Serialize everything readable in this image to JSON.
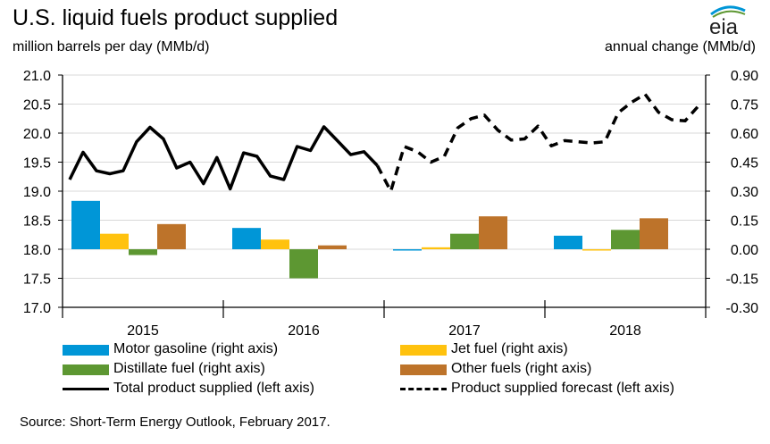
{
  "title": "U.S. liquid fuels product supplied",
  "left_unit": "million barrels per day (MMb/d)",
  "right_unit": "annual change (MMb/d)",
  "logo_text": "eia",
  "source": "Source: Short-Term Energy Outlook, February 2017.",
  "colors": {
    "motor_gasoline": "#0096d7",
    "jet_fuel": "#ffc20e",
    "distillate_fuel": "#5d9732",
    "other_fuels": "#bd732a",
    "line": "#000000"
  },
  "legend": [
    {
      "key": "motor_gasoline",
      "label": "Motor gasoline (right axis)"
    },
    {
      "key": "jet_fuel",
      "label": "Jet fuel (right axis)"
    },
    {
      "key": "distillate_fuel",
      "label": "Distillate fuel (right axis)"
    },
    {
      "key": "other_fuels",
      "label": "Other fuels (right axis)"
    },
    {
      "key": "total",
      "label": "Total product supplied (left axis)"
    },
    {
      "key": "forecast",
      "label": "Product supplied forecast (left axis)"
    }
  ],
  "chart_data": {
    "type": "bar+line",
    "categories": [
      "2015",
      "2016",
      "2017",
      "2018"
    ],
    "left_axis": {
      "range": [
        17.0,
        21.0
      ],
      "ticks": [
        "17.0",
        "17.5",
        "18.0",
        "18.5",
        "19.0",
        "19.5",
        "20.0",
        "20.5",
        "21.0"
      ]
    },
    "right_axis": {
      "range": [
        -0.3,
        0.9
      ],
      "ticks": [
        "-0.30",
        "-0.15",
        "0.00",
        "0.15",
        "0.30",
        "0.45",
        "0.60",
        "0.75",
        "0.90"
      ]
    },
    "bar_series": [
      {
        "name": "Motor gasoline (right axis)",
        "key": "motor_gasoline",
        "values": [
          0.25,
          0.11,
          -0.005,
          0.07
        ]
      },
      {
        "name": "Jet fuel (right axis)",
        "key": "jet_fuel",
        "values": [
          0.08,
          0.05,
          0.01,
          0.0
        ]
      },
      {
        "name": "Distillate fuel (right axis)",
        "key": "distillate_fuel",
        "values": [
          -0.03,
          -0.15,
          0.08,
          0.1
        ]
      },
      {
        "name": "Other fuels (right axis)",
        "key": "other_fuels",
        "values": [
          0.13,
          0.02,
          0.17,
          0.16
        ]
      }
    ],
    "line_series": [
      {
        "name": "Total product supplied (left axis)",
        "style": "solid",
        "x": [
          "2015-01",
          "2015-02",
          "2015-03",
          "2015-04",
          "2015-05",
          "2015-06",
          "2015-07",
          "2015-08",
          "2015-09",
          "2015-10",
          "2015-11",
          "2015-12",
          "2016-01",
          "2016-02",
          "2016-03",
          "2016-04",
          "2016-05",
          "2016-06",
          "2016-07",
          "2016-08",
          "2016-09",
          "2016-10",
          "2016-11",
          "2016-12"
        ],
        "values": [
          19.2,
          19.67,
          19.35,
          19.3,
          19.35,
          19.85,
          20.1,
          19.9,
          19.4,
          19.5,
          19.13,
          19.58,
          19.04,
          19.66,
          19.6,
          19.26,
          19.2,
          19.77,
          19.7,
          20.11,
          19.87,
          19.63,
          19.68,
          19.44
        ]
      },
      {
        "name": "Product supplied forecast (left axis)",
        "style": "dashed",
        "x": [
          "2016-12",
          "2017-01",
          "2017-02",
          "2017-03",
          "2017-04",
          "2017-05",
          "2017-06",
          "2017-07",
          "2017-08",
          "2017-09",
          "2017-10",
          "2017-11",
          "2017-12",
          "2018-01",
          "2018-02",
          "2018-03",
          "2018-04",
          "2018-05",
          "2018-06",
          "2018-07",
          "2018-08",
          "2018-09",
          "2018-10",
          "2018-11",
          "2018-12"
        ],
        "values": [
          19.44,
          19.0,
          19.77,
          19.68,
          19.5,
          19.6,
          20.09,
          20.25,
          20.31,
          20.05,
          19.88,
          19.9,
          20.12,
          19.78,
          19.87,
          19.85,
          19.83,
          19.85,
          20.35,
          20.53,
          20.67,
          20.36,
          20.23,
          20.21,
          20.47
        ]
      }
    ]
  }
}
